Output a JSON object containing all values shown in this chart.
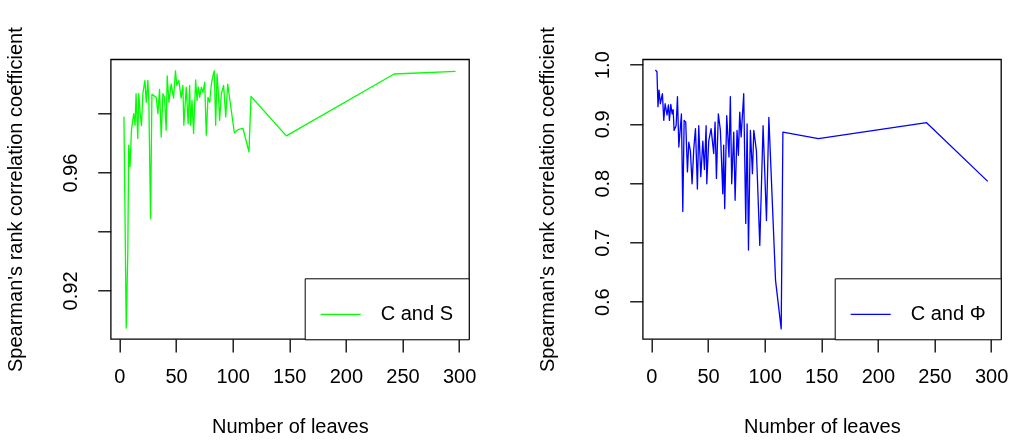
{
  "chart_data": [
    {
      "type": "line",
      "xlabel": "Number of leaves",
      "ylabel": "Spearman's rank correlation coefficient",
      "legend": "bottom right",
      "x": [
        4,
        6,
        7.4,
        8.2,
        9.4,
        10.6,
        12.6,
        13.8,
        14.7,
        16.2,
        17.1,
        18.3,
        19.5,
        20.7,
        22.5,
        23.7,
        25.1,
        26,
        27.5,
        28.7,
        31,
        32.5,
        34,
        35.4,
        36.9,
        38.4,
        39.8,
        41.3,
        42.2,
        43.7,
        45.7,
        47.8,
        49.5,
        50.7,
        52.5,
        54.5,
        56,
        56.9,
        59,
        60.7,
        62,
        62.9,
        64.1,
        65.5,
        67.3,
        68.5,
        69.7,
        70.9,
        72.3,
        73.8,
        75.3,
        76.7,
        78.2,
        79.7,
        81.2,
        82.6,
        83.8,
        85,
        86.2,
        87.4,
        88.5,
        90,
        92,
        93.9,
        95.6,
        101.5,
        104.7,
        109.1,
        114.4,
        116.2,
        147.4,
        242.6,
        296.8
      ],
      "series": [
        {
          "name": "C and S",
          "color": "#00ff00",
          "values": [
            0.979,
            0.9072,
            0.9328,
            0.9693,
            0.962,
            0.9744,
            0.98,
            0.9761,
            0.9868,
            0.9716,
            0.9869,
            0.98,
            0.976,
            0.9869,
            0.9913,
            0.9839,
            0.9913,
            0.9839,
            0.9443,
            0.9866,
            0.986,
            0.9856,
            0.98,
            0.9883,
            0.9721,
            0.9868,
            0.9856,
            0.9744,
            0.9929,
            0.9839,
            0.9901,
            0.9853,
            0.9946,
            0.9896,
            0.9913,
            0.9853,
            0.9896,
            0.9761,
            0.989,
            0.9766,
            0.9896,
            0.9761,
            0.9845,
            0.9733,
            0.9915,
            0.9845,
            0.989,
            0.9856,
            0.989,
            0.9873,
            0.9907,
            0.9727,
            0.9856,
            0.9839,
            0.9901,
            0.9929,
            0.9946,
            0.9761,
            0.9935,
            0.9868,
            0.9778,
            0.9868,
            0.9896,
            0.9789,
            0.9901,
            0.9735,
            0.9746,
            0.975,
            0.9671,
            0.9859,
            0.9725,
            0.9935,
            0.9944
          ]
        }
      ],
      "xlim": [
        -7.7,
        308.7
      ],
      "xticks": [
        0,
        50,
        100,
        150,
        200,
        250,
        300
      ],
      "ylim": [
        0.9035,
        0.9985
      ],
      "yticks": [
        0.92,
        {
          "value": 0.94,
          "label": null
        },
        0.96,
        {
          "value": 0.98,
          "label": null
        }
      ]
    },
    {
      "type": "line",
      "xlabel": "Number of leaves",
      "ylabel": "Spearman's rank correlation coefficient",
      "legend": "bottom right",
      "x": [
        3.5,
        4.9,
        5.8,
        6.7,
        7.9,
        9.7,
        10.9,
        12.1,
        13.8,
        15,
        15.9,
        17.1,
        18.3,
        19.2,
        20,
        21.8,
        23,
        24.2,
        25.6,
        26.5,
        27.7,
        28.9,
        30.3,
        31.8,
        33,
        34.4,
        35.9,
        37.4,
        38.9,
        40.6,
        41.8,
        43.6,
        45.4,
        46.8,
        48.3,
        48.9,
        50.6,
        52.7,
        55,
        56.2,
        57.4,
        59.1,
        60.9,
        63,
        63.8,
        64.7,
        66.5,
        68.5,
        69.7,
        70.9,
        72.7,
        73.9,
        75.6,
        76.8,
        78,
        79.2,
        81.5,
        83.3,
        84.5,
        85.7,
        87.4,
        89.2,
        90.4,
        92.7,
        95.7,
        98.6,
        101.6,
        103.7,
        109.6,
        114.6,
        116.1,
        147.5,
        243,
        297
      ],
      "series": [
        {
          "name": "C and Φ",
          "color": "#0000ff",
          "values": [
            0.991,
            0.988,
            0.929,
            0.957,
            0.934,
            0.951,
            0.906,
            0.934,
            0.915,
            0.932,
            0.906,
            0.933,
            0.917,
            0.924,
            0.889,
            0.897,
            0.946,
            0.861,
            0.895,
            0.917,
            0.752,
            0.906,
            0.903,
            0.819,
            0.869,
            0.855,
            0.799,
            0.858,
            0.892,
            0.79,
            0.897,
            0.811,
            0.871,
            0.823,
            0.897,
            0.799,
            0.871,
            0.892,
            0.85,
            0.903,
            0.808,
            0.917,
            0.889,
            0.782,
            0.864,
            0.757,
            0.914,
            0.844,
            0.946,
            0.799,
            0.886,
            0.771,
            0.889,
            0.847,
            0.92,
            0.878,
            0.951,
            0.732,
            0.9,
            0.687,
            0.889,
            0.816,
            0.889,
            0.855,
            0.695,
            0.897,
            0.737,
            0.911,
            0.636,
            0.554,
            0.886,
            0.875,
            0.902,
            0.803
          ]
        }
      ],
      "xlim": [
        -7.7,
        308.7
      ],
      "xticks": [
        0,
        50,
        100,
        150,
        200,
        250,
        300
      ],
      "ylim": [
        0.537,
        1.009
      ],
      "yticks": [
        0.6,
        0.7,
        0.8,
        0.9,
        {
          "value": 1,
          "label": "1.0"
        }
      ]
    }
  ]
}
